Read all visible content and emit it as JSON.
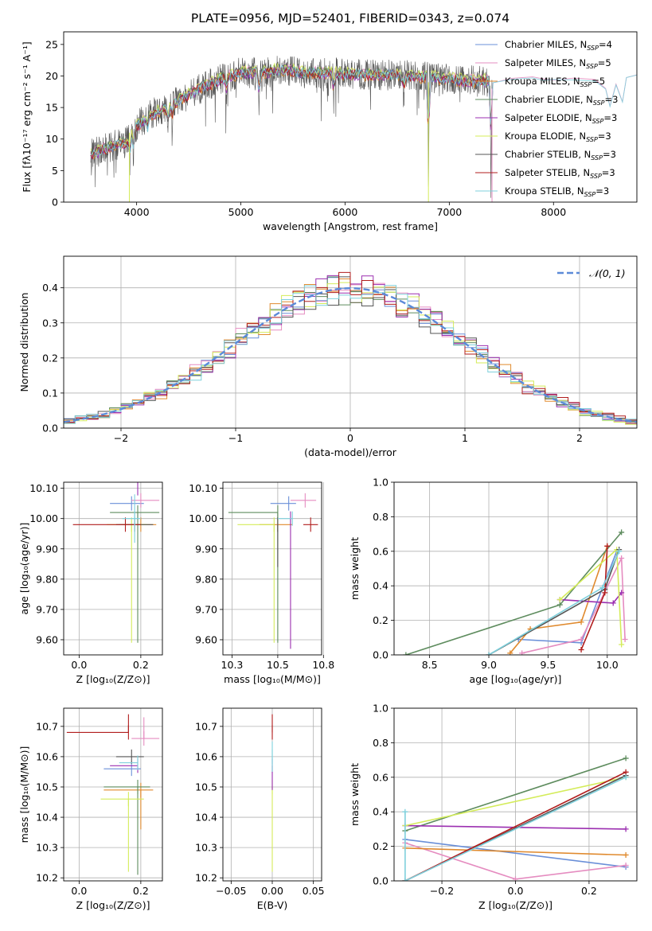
{
  "figure_title": "PLATE=0956, MJD=52401, FIBERID=0343, z=0.074",
  "palette": {
    "Chabrier MILES": "#6a8fd8",
    "Salpeter MILES": "#e58cc0",
    "Kroupa MILES": "#e08a2e",
    "Chabrier ELODIE": "#5e8c5e",
    "Salpeter ELODIE": "#9b2fb0",
    "Kroupa ELODIE": "#d4ec5a",
    "Chabrier STELIB": "#555555",
    "Salpeter STELIB": "#b11d1d",
    "Kroupa STELIB": "#7fd0dc"
  },
  "chart_data": [
    {
      "id": "spectrum",
      "type": "line",
      "title": "",
      "xlabel": "wavelength [Angstrom, rest frame]",
      "ylabel": "Flux [fλ10⁻¹⁷ erg cm⁻² s⁻¹ A⁻¹]",
      "xlim": [
        3300,
        8800
      ],
      "ylim": [
        0,
        27
      ],
      "xticks": [
        4000,
        5000,
        6000,
        7000,
        8000
      ],
      "yticks": [
        0,
        5,
        10,
        15,
        20,
        25
      ],
      "grid": false,
      "legend_position": "top-right",
      "legend": [
        "Chabrier MILES, N_SSP=4",
        "Salpeter MILES, N_SSP=5",
        "Kroupa MILES, N_SSP=5",
        "Chabrier ELODIE, N_SSP=3",
        "Salpeter ELODIE, N_SSP=3",
        "Kroupa ELODIE, N_SSP=3",
        "Chabrier STELIB, N_SSP=3",
        "Salpeter STELIB, N_SSP=3",
        "Kroupa STELIB, N_SSP=3"
      ],
      "spectrum_range": [
        3560,
        7420
      ],
      "continuum": [
        [
          3560,
          7.5
        ],
        [
          3700,
          8.5
        ],
        [
          3900,
          9.5
        ],
        [
          4000,
          12
        ],
        [
          4150,
          14
        ],
        [
          4300,
          15
        ],
        [
          4450,
          16.5
        ],
        [
          4600,
          18
        ],
        [
          4800,
          19.5
        ],
        [
          5000,
          20.5
        ],
        [
          5200,
          20.5
        ],
        [
          5400,
          21
        ],
        [
          5600,
          20.5
        ],
        [
          5800,
          20.5
        ],
        [
          6000,
          20.3
        ],
        [
          6200,
          20.2
        ],
        [
          6400,
          20.2
        ],
        [
          6600,
          20
        ],
        [
          6800,
          19.8
        ],
        [
          7000,
          19.5
        ],
        [
          7200,
          19.2
        ],
        [
          7420,
          19.2
        ]
      ],
      "absorption_features": [
        [
          3934,
          5.5
        ],
        [
          3969,
          5.5
        ],
        [
          4102,
          4
        ],
        [
          4300,
          4
        ],
        [
          4340,
          4
        ],
        [
          4861,
          4
        ],
        [
          5175,
          6
        ],
        [
          5890,
          5
        ],
        [
          6563,
          4
        ],
        [
          6800,
          19
        ],
        [
          7400,
          19
        ]
      ],
      "model_extension": [
        [
          7420,
          19.2
        ],
        [
          7600,
          19.5
        ],
        [
          7800,
          19.6
        ],
        [
          7900,
          19.3
        ],
        [
          8000,
          19.5
        ],
        [
          8200,
          19.5
        ],
        [
          8400,
          19.2
        ],
        [
          8500,
          18.2
        ],
        [
          8542,
          15
        ],
        [
          8600,
          18.8
        ],
        [
          8662,
          16
        ],
        [
          8700,
          19.6
        ],
        [
          8800,
          20
        ]
      ]
    },
    {
      "id": "residuals",
      "type": "histogram",
      "title": "",
      "xlabel": "(data-model)/error",
      "ylabel": "Normed distribution",
      "xlim": [
        -2.5,
        2.5
      ],
      "ylim": [
        0,
        0.49
      ],
      "xticks": [
        -2,
        -1,
        0,
        1,
        2
      ],
      "yticks": [
        0.0,
        0.1,
        0.2,
        0.3,
        0.4
      ],
      "grid": true,
      "legend_position": "top-right",
      "legend": [
        "𝒩(0, 1)"
      ],
      "normal_curve": {
        "mean": 0,
        "sigma": 1
      },
      "bin_width": 0.1
    },
    {
      "id": "age_vs_Z",
      "type": "errorbar",
      "xlabel": "Z [log₁₀(Z/Z⊙)]",
      "ylabel": "age  [log₁₀(age/yr)]",
      "xlim": [
        -0.05,
        0.27
      ],
      "ylim": [
        9.55,
        10.12
      ],
      "xticks": [
        0.0,
        0.2
      ],
      "yticks": [
        9.6,
        9.7,
        9.8,
        9.9,
        10.0,
        10.1
      ],
      "grid": true,
      "points": [
        {
          "series": "Chabrier MILES",
          "x": 0.17,
          "y": 10.05,
          "xerr": [
            0.07,
            0.04
          ],
          "yerr": [
            0.0,
            0.0
          ]
        },
        {
          "series": "Salpeter MILES",
          "x": 0.2,
          "y": 10.06,
          "xerr": [
            0.03,
            0.06
          ],
          "yerr": [
            0.0,
            0.0
          ]
        },
        {
          "series": "Kroupa MILES",
          "x": 0.2,
          "y": 9.98,
          "xerr": [
            0.07,
            0.05
          ],
          "yerr": [
            0.0,
            0.0
          ]
        },
        {
          "series": "Chabrier ELODIE",
          "x": 0.19,
          "y": 10.02,
          "xerr": [
            0.09,
            0.07
          ],
          "yerr": [
            0.43,
            0.0
          ]
        },
        {
          "series": "Salpeter ELODIE",
          "x": 0.19,
          "y": 10.1,
          "xerr": [
            0.0,
            0.0
          ],
          "yerr": [
            0.0,
            0.0
          ]
        },
        {
          "series": "Kroupa ELODIE",
          "x": 0.17,
          "y": 9.98,
          "xerr": [
            0.08,
            0.05
          ],
          "yerr": [
            0.39,
            0.0
          ]
        },
        {
          "series": "Chabrier STELIB",
          "x": 0.18,
          "y": 9.98,
          "xerr": [
            0.06,
            0.06
          ],
          "yerr": [
            0.0,
            0.0
          ]
        },
        {
          "series": "Salpeter STELIB",
          "x": 0.15,
          "y": 9.98,
          "xerr": [
            0.17,
            0.05
          ],
          "yerr": [
            0.0,
            0.0
          ]
        },
        {
          "series": "Kroupa STELIB",
          "x": 0.18,
          "y": 10.0,
          "xerr": [
            0.04,
            0.02
          ],
          "yerr": [
            0.08,
            0.08
          ]
        }
      ]
    },
    {
      "id": "age_vs_mass",
      "type": "errorbar",
      "xlabel": "mass [log₁₀(M/M⊙)]",
      "ylabel": "",
      "xlim": [
        10.2,
        10.74
      ],
      "ylim": [
        9.55,
        10.12
      ],
      "xticks": [
        10.25,
        10.5,
        10.75
      ],
      "yticks": [
        9.6,
        9.7,
        9.8,
        9.9,
        10.0,
        10.1
      ],
      "grid": true,
      "points": [
        {
          "series": "Chabrier MILES",
          "x": 10.56,
          "y": 10.05,
          "xerr": [
            0.1,
            0.04
          ],
          "yerr": [
            0.0,
            0.0
          ]
        },
        {
          "series": "Salpeter MILES",
          "x": 10.65,
          "y": 10.06,
          "xerr": [
            0.08,
            0.06
          ],
          "yerr": [
            0.0,
            0.0
          ]
        },
        {
          "series": "Kroupa MILES",
          "x": 10.5,
          "y": 9.98,
          "xerr": [
            0.1,
            0.08
          ],
          "yerr": [
            0.0,
            0.0
          ]
        },
        {
          "series": "Chabrier ELODIE",
          "x": 10.5,
          "y": 10.02,
          "xerr": [
            0.27,
            0.0
          ],
          "yerr": [
            0.43,
            0.0
          ]
        },
        {
          "series": "Salpeter ELODIE",
          "x": 10.57,
          "y": 10.0,
          "xerr": [
            0.0,
            0.0
          ],
          "yerr": [
            0.43,
            0.0
          ]
        },
        {
          "series": "Kroupa ELODIE",
          "x": 10.48,
          "y": 9.98,
          "xerr": [
            0.2,
            0.0
          ],
          "yerr": [
            0.39,
            0.0
          ]
        },
        {
          "series": "Chabrier STELIB",
          "x": 10.5,
          "y": 9.98,
          "xerr": [
            0.0,
            0.0
          ],
          "yerr": [
            0.14,
            0.0
          ]
        },
        {
          "series": "Salpeter STELIB",
          "x": 10.68,
          "y": 9.98,
          "xerr": [
            0.04,
            0.04
          ],
          "yerr": [
            0.0,
            0.0
          ]
        },
        {
          "series": "Kroupa STELIB",
          "x": 10.58,
          "y": 10.0,
          "xerr": [
            0.08,
            0.0
          ],
          "yerr": [
            0.0,
            0.0
          ]
        }
      ]
    },
    {
      "id": "weight_vs_age",
      "type": "line",
      "xlabel": "age  [log₁₀(age/yr)]",
      "ylabel": "mass weight",
      "xlim": [
        8.2,
        10.25
      ],
      "ylim": [
        0,
        1
      ],
      "xticks": [
        8.5,
        9.0,
        9.5,
        10.0
      ],
      "yticks": [
        0.0,
        0.2,
        0.4,
        0.6,
        0.8,
        1.0
      ],
      "grid": true,
      "series": [
        {
          "name": "Chabrier MILES",
          "x": [
            9.25,
            9.78,
            10.08
          ],
          "y": [
            0.09,
            0.07,
            0.6
          ]
        },
        {
          "name": "Salpeter MILES",
          "x": [
            9.28,
            9.78,
            10.12,
            10.15
          ],
          "y": [
            0.01,
            0.09,
            0.56,
            0.09
          ]
        },
        {
          "name": "Kroupa MILES",
          "x": [
            9.18,
            9.35,
            9.78,
            10.0
          ],
          "y": [
            0.01,
            0.15,
            0.19,
            0.63
          ]
        },
        {
          "name": "Chabrier ELODIE",
          "x": [
            8.3,
            9.6,
            10.12
          ],
          "y": [
            0.0,
            0.29,
            0.71
          ]
        },
        {
          "name": "Salpeter ELODIE",
          "x": [
            9.6,
            10.05,
            10.12
          ],
          "y": [
            0.32,
            0.3,
            0.36
          ]
        },
        {
          "name": "Kroupa ELODIE",
          "x": [
            9.6,
            10.08,
            10.12
          ],
          "y": [
            0.32,
            0.61,
            0.06
          ]
        },
        {
          "name": "Chabrier STELIB",
          "x": [
            9.0,
            9.98,
            10.1
          ],
          "y": [
            0.0,
            0.38,
            0.61
          ]
        },
        {
          "name": "Salpeter STELIB",
          "x": [
            9.78,
            9.98,
            10.0
          ],
          "y": [
            0.03,
            0.36,
            0.63
          ]
        },
        {
          "name": "Kroupa STELIB",
          "x": [
            9.0,
            9.96,
            10.1
          ],
          "y": [
            0.0,
            0.39,
            0.6
          ]
        }
      ]
    },
    {
      "id": "mass_vs_Z",
      "type": "errorbar",
      "xlabel": "Z [log₁₀(Z/Z⊙)]",
      "ylabel": "mass [log₁₀(M/M⊙)]",
      "xlim": [
        -0.05,
        0.27
      ],
      "ylim": [
        10.19,
        10.76
      ],
      "xticks": [
        0.0,
        0.2
      ],
      "yticks": [
        10.2,
        10.3,
        10.4,
        10.5,
        10.6,
        10.7
      ],
      "grid": true,
      "points": [
        {
          "series": "Chabrier MILES",
          "x": 0.17,
          "y": 10.56,
          "xerr": [
            0.09,
            0.03
          ],
          "yerr": [
            0.0,
            0.0
          ]
        },
        {
          "series": "Salpeter MILES",
          "x": 0.21,
          "y": 10.66,
          "xerr": [
            0.04,
            0.05
          ],
          "yerr": [
            0.0,
            0.07
          ]
        },
        {
          "series": "Kroupa MILES",
          "x": 0.2,
          "y": 10.49,
          "xerr": [
            0.12,
            0.04
          ],
          "yerr": [
            0.13,
            0.0
          ]
        },
        {
          "series": "Chabrier ELODIE",
          "x": 0.19,
          "y": 10.5,
          "xerr": [
            0.11,
            0.04
          ],
          "yerr": [
            0.29,
            0.0
          ]
        },
        {
          "series": "Salpeter ELODIE",
          "x": 0.19,
          "y": 10.57,
          "xerr": [
            0.09,
            0.0
          ],
          "yerr": [
            0.0,
            0.0
          ]
        },
        {
          "series": "Kroupa ELODIE",
          "x": 0.16,
          "y": 10.46,
          "xerr": [
            0.09,
            0.05
          ],
          "yerr": [
            0.24,
            0.0
          ]
        },
        {
          "series": "Chabrier STELIB",
          "x": 0.17,
          "y": 10.6,
          "xerr": [
            0.05,
            0.04
          ],
          "yerr": [
            0.0,
            0.0
          ]
        },
        {
          "series": "Salpeter STELIB",
          "x": 0.16,
          "y": 10.68,
          "xerr": [
            0.2,
            0.0
          ],
          "yerr": [
            0.0,
            0.06
          ]
        },
        {
          "series": "Kroupa STELIB",
          "x": 0.19,
          "y": 10.58,
          "xerr": [
            0.06,
            0.0
          ],
          "yerr": [
            0.0,
            0.0
          ]
        }
      ]
    },
    {
      "id": "mass_vs_ebv",
      "type": "errorbar",
      "xlabel": "E(B-V)",
      "ylabel": "",
      "xlim": [
        -0.06,
        0.06
      ],
      "ylim": [
        10.19,
        10.76
      ],
      "xticks": [
        -0.05,
        0.0,
        0.05
      ],
      "yticks": [
        10.2,
        10.3,
        10.4,
        10.5,
        10.6,
        10.7
      ],
      "grid": true,
      "points": [
        {
          "series": "Kroupa ELODIE",
          "x": 0.0,
          "y": 10.5,
          "xerr": [
            0,
            0
          ],
          "yerr": [
            0.28,
            0.0
          ]
        },
        {
          "series": "Salpeter ELODIE",
          "x": 0.0,
          "y": 10.57,
          "xerr": [
            0,
            0
          ],
          "yerr": [
            0.08,
            0.0
          ]
        },
        {
          "series": "Salpeter STELIB",
          "x": 0.0,
          "y": 10.68,
          "xerr": [
            0,
            0
          ],
          "yerr": [
            0.0,
            0.06
          ]
        },
        {
          "series": "Kroupa STELIB",
          "x": 0.0,
          "y": 10.6,
          "xerr": [
            0,
            0
          ],
          "yerr": [
            0.05,
            0.05
          ]
        }
      ]
    },
    {
      "id": "weight_vs_Z",
      "type": "line",
      "xlabel": "Z [log₁₀(Z/Z⊙)]",
      "ylabel": "mass weight",
      "xlim": [
        -0.33,
        0.33
      ],
      "ylim": [
        0,
        1
      ],
      "xticks": [
        -0.2,
        0.0,
        0.2
      ],
      "yticks": [
        0.0,
        0.2,
        0.4,
        0.6,
        0.8,
        1.0
      ],
      "grid": true,
      "series": [
        {
          "name": "Chabrier MILES",
          "x": [
            -0.3,
            0.3
          ],
          "y": [
            0.24,
            0.08
          ]
        },
        {
          "name": "Salpeter MILES",
          "x": [
            -0.3,
            0.0,
            0.3
          ],
          "y": [
            0.22,
            0.01,
            0.09
          ]
        },
        {
          "name": "Kroupa MILES",
          "x": [
            -0.3,
            0.3
          ],
          "y": [
            0.19,
            0.15
          ]
        },
        {
          "name": "Chabrier ELODIE",
          "x": [
            -0.3,
            0.3
          ],
          "y": [
            0.29,
            0.71
          ]
        },
        {
          "name": "Salpeter ELODIE",
          "x": [
            -0.3,
            0.3
          ],
          "y": [
            0.32,
            0.3
          ]
        },
        {
          "name": "Kroupa ELODIE",
          "x": [
            -0.3,
            0.3
          ],
          "y": [
            0.32,
            0.6
          ]
        },
        {
          "name": "Chabrier STELIB",
          "x": [
            -0.3,
            0.3
          ],
          "y": [
            0.0,
            0.61
          ]
        },
        {
          "name": "Salpeter STELIB",
          "x": [
            -0.3,
            0.3
          ],
          "y": [
            0.0,
            0.63
          ]
        },
        {
          "name": "Kroupa STELIB",
          "x": [
            -0.3,
            -0.3,
            0.3
          ],
          "y": [
            0.4,
            0.0,
            0.6
          ]
        }
      ]
    }
  ]
}
